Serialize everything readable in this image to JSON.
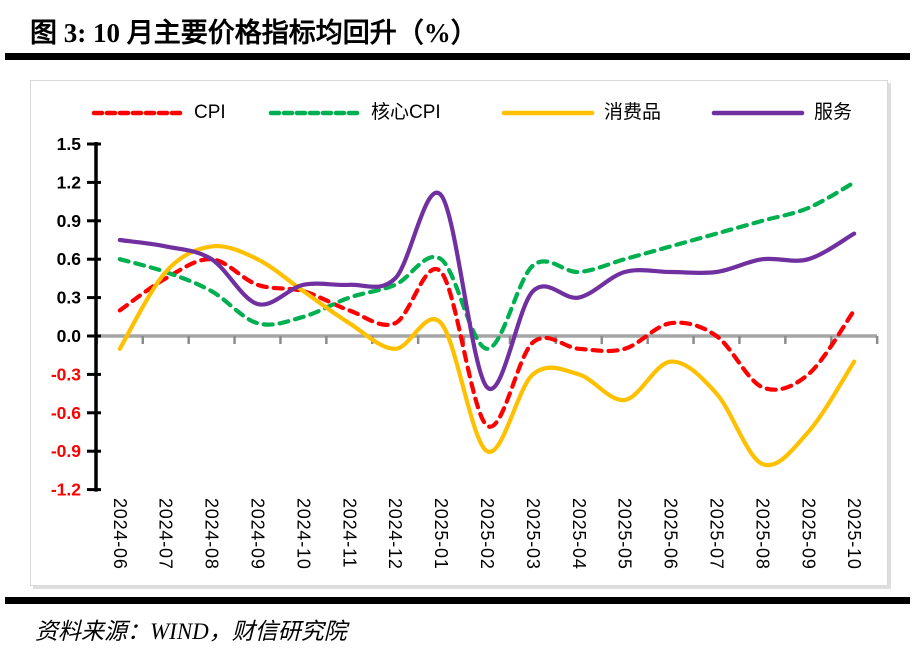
{
  "page": {
    "title": "图 3: 10 月主要价格指标均回升（%）",
    "source": "资料来源：WIND，财信研究院"
  },
  "legend": {
    "items": [
      {
        "label": "CPI",
        "color": "#FF0000",
        "dashed": true
      },
      {
        "label": "核心CPI",
        "color": "#00B050",
        "dashed": true
      },
      {
        "label": "消费品",
        "color": "#FFC000",
        "dashed": false
      },
      {
        "label": "服务",
        "color": "#7030A0",
        "dashed": false
      }
    ]
  },
  "chart_data": {
    "type": "line",
    "title": "10月主要价格指标均回升（%）",
    "x": [
      "2024-06",
      "2024-07",
      "2024-08",
      "2024-09",
      "2024-10",
      "2024-11",
      "2024-12",
      "2025-01",
      "2025-02",
      "2025-03",
      "2025-04",
      "2025-05",
      "2025-06",
      "2025-07",
      "2025-08",
      "2025-09",
      "2025-10"
    ],
    "series": [
      {
        "name": "CPI",
        "color": "#FF0000",
        "style": "dashed",
        "values": [
          0.2,
          0.45,
          0.6,
          0.4,
          0.35,
          0.2,
          0.1,
          0.5,
          -0.7,
          -0.05,
          -0.1,
          -0.1,
          0.1,
          0.0,
          -0.4,
          -0.3,
          0.2
        ]
      },
      {
        "name": "核心CPI",
        "color": "#00B050",
        "style": "dashed",
        "values": [
          0.6,
          0.5,
          0.35,
          0.1,
          0.15,
          0.3,
          0.4,
          0.6,
          -0.1,
          0.55,
          0.5,
          0.6,
          0.7,
          0.8,
          0.9,
          1.0,
          1.2
        ]
      },
      {
        "name": "消费品",
        "color": "#FFC000",
        "style": "solid",
        "values": [
          -0.1,
          0.5,
          0.7,
          0.6,
          0.35,
          0.1,
          -0.1,
          0.1,
          -0.9,
          -0.3,
          -0.3,
          -0.5,
          -0.2,
          -0.45,
          -1.0,
          -0.75,
          -0.2
        ]
      },
      {
        "name": "服务",
        "color": "#7030A0",
        "style": "solid",
        "values": [
          0.75,
          0.7,
          0.6,
          0.25,
          0.4,
          0.4,
          0.45,
          1.1,
          -0.4,
          0.35,
          0.3,
          0.5,
          0.5,
          0.5,
          0.6,
          0.6,
          0.8
        ]
      }
    ],
    "ylim": [
      -1.2,
      1.5
    ],
    "ytick_step": 0.3,
    "ytick_labels": [
      "1.5",
      "1.2",
      "0.9",
      "0.6",
      "0.3",
      "0.0",
      "-0.3",
      "-0.6",
      "-0.9",
      "-1.2"
    ],
    "grid": false,
    "zero_line": true,
    "legend_position": "top",
    "axis_colors": {
      "axis": "#000000",
      "positive_labels": "#000000",
      "negative_labels": "#FF0000",
      "zero_line": "#A6A6A6",
      "zero_line_ticks": "#8C8C8C"
    }
  }
}
